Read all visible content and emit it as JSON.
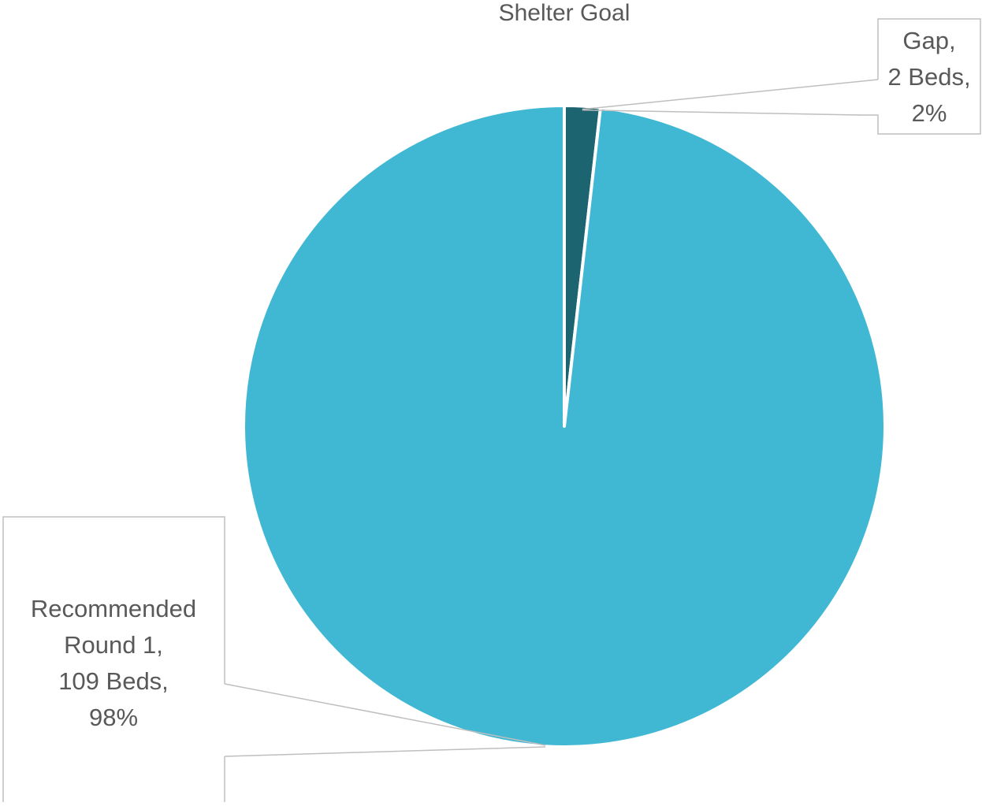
{
  "chart_data": {
    "type": "pie",
    "title": "Shelter Goal",
    "slices": [
      {
        "name": "Gap",
        "value": 2,
        "percent": 2,
        "label_lines": [
          "Gap,",
          "2 Beds,",
          "2%"
        ],
        "color": "#1c6470"
      },
      {
        "name": "Recommended Round 1",
        "value": 109,
        "percent": 98,
        "label_lines": [
          "Recommended",
          "Round 1,",
          "109 Beds,",
          "98%"
        ],
        "color": "#41b8d3"
      }
    ],
    "start_angle": "12 o'clock",
    "direction": "clockwise",
    "legend": "none",
    "label_style": "callout boxes with leader lines"
  }
}
